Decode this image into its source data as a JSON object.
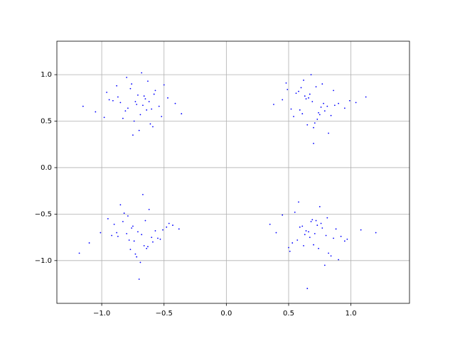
{
  "chart_data": {
    "type": "scatter",
    "color": "#0000ff",
    "grid": true,
    "xlim": [
      -1.36,
      1.47
    ],
    "ylim": [
      -1.46,
      1.36
    ],
    "xticks": [
      {
        "value": -1.0,
        "label": "−1.0"
      },
      {
        "value": -0.5,
        "label": "−0.5"
      },
      {
        "value": 0.0,
        "label": "0.0"
      },
      {
        "value": 0.5,
        "label": "0.5"
      },
      {
        "value": 1.0,
        "label": "1.0"
      }
    ],
    "yticks": [
      {
        "value": -1.0,
        "label": "−1.0"
      },
      {
        "value": -0.5,
        "label": "−0.5"
      },
      {
        "value": 0.0,
        "label": "0.0"
      },
      {
        "value": 0.5,
        "label": "0.5"
      },
      {
        "value": 1.0,
        "label": "1.0"
      }
    ],
    "x": [
      -0.72,
      -0.65,
      -0.81,
      -0.58,
      -0.77,
      -0.69,
      -0.91,
      -0.54,
      -0.63,
      -0.85,
      -0.74,
      -0.6,
      -0.96,
      -0.47,
      -0.7,
      -0.79,
      -0.66,
      -0.88,
      -0.52,
      -0.73,
      -1.05,
      -0.41,
      -0.68,
      -0.83,
      -0.61,
      -0.76,
      -0.57,
      -0.94,
      -0.64,
      -0.71,
      -1.15,
      -0.36,
      -0.8,
      -0.59,
      -0.67,
      -0.87,
      -0.5,
      -0.75,
      -0.62,
      -0.98,
      0.69,
      0.74,
      0.58,
      0.81,
      0.66,
      0.77,
      0.52,
      0.9,
      0.71,
      0.63,
      0.84,
      0.6,
      0.45,
      0.95,
      0.68,
      0.73,
      0.56,
      0.79,
      1.04,
      0.62,
      0.7,
      0.87,
      0.49,
      0.75,
      0.64,
      0.38,
      0.82,
      0.67,
      0.59,
      0.99,
      0.72,
      0.54,
      0.76,
      1.12,
      0.65,
      0.86,
      0.61,
      0.48,
      0.78,
      0.7,
      -0.68,
      -0.76,
      -0.59,
      -0.83,
      -0.71,
      -0.64,
      -0.9,
      -0.55,
      -0.79,
      -0.73,
      -1.01,
      -0.48,
      -0.66,
      -0.87,
      -0.62,
      -0.74,
      -0.51,
      -0.95,
      -0.69,
      -0.8,
      -0.43,
      -0.77,
      -0.6,
      -0.85,
      -1.1,
      -0.57,
      -0.72,
      -0.65,
      -0.92,
      -0.38,
      -0.7,
      -0.82,
      -0.53,
      -0.75,
      -0.63,
      -0.88,
      -0.67,
      -1.18,
      -0.46,
      -0.78,
      0.66,
      0.73,
      0.57,
      0.8,
      0.69,
      0.62,
      0.88,
      0.51,
      0.76,
      0.71,
      0.97,
      0.45,
      0.64,
      0.84,
      0.59,
      0.75,
      0.53,
      0.92,
      0.68,
      0.79,
      0.4,
      0.74,
      0.61,
      0.86,
      1.08,
      0.55,
      0.7,
      0.63,
      0.9,
      0.35,
      0.67,
      0.81,
      0.5,
      0.77,
      0.65,
      0.95,
      0.72,
      1.2,
      0.58,
      0.82
    ],
    "values": [
      0.68,
      0.74,
      0.61,
      0.79,
      0.85,
      0.57,
      0.72,
      0.66,
      0.93,
      0.7,
      0.5,
      0.63,
      0.81,
      0.75,
      0.4,
      0.64,
      0.77,
      0.88,
      0.55,
      0.71,
      0.6,
      0.69,
      1.02,
      0.53,
      0.47,
      0.9,
      0.83,
      0.73,
      0.62,
      0.78,
      0.66,
      0.58,
      0.97,
      0.44,
      0.67,
      0.76,
      0.89,
      0.35,
      0.71,
      0.54,
      0.71,
      0.59,
      0.82,
      0.66,
      0.75,
      0.9,
      0.63,
      0.69,
      0.48,
      0.77,
      0.56,
      0.86,
      0.73,
      0.64,
      1.0,
      0.52,
      0.8,
      0.61,
      0.7,
      0.94,
      0.43,
      0.67,
      0.84,
      0.57,
      0.74,
      0.68,
      0.37,
      0.79,
      0.62,
      0.72,
      0.87,
      0.55,
      0.65,
      0.76,
      0.46,
      0.83,
      0.58,
      0.91,
      0.69,
      0.26,
      -0.72,
      -0.65,
      -0.8,
      -0.58,
      -0.69,
      -0.87,
      -0.61,
      -0.76,
      -0.52,
      -0.93,
      -0.7,
      -0.64,
      -0.84,
      -0.74,
      -0.45,
      -0.79,
      -0.67,
      -0.55,
      -1.02,
      -0.71,
      -0.62,
      -0.88,
      -0.75,
      -0.4,
      -0.81,
      -0.68,
      -0.96,
      -0.57,
      -0.73,
      -0.66,
      -1.2,
      -0.49,
      -0.77,
      -0.63,
      -0.85,
      -0.7,
      -0.29,
      -0.92,
      -0.6,
      -0.78,
      -0.69,
      -0.62,
      -0.78,
      -0.73,
      -0.56,
      -0.84,
      -0.66,
      -0.9,
      -0.6,
      -0.71,
      -0.77,
      -0.51,
      -0.68,
      -0.95,
      -0.64,
      -0.42,
      -0.81,
      -0.74,
      -0.58,
      -1.05,
      -0.7,
      -0.87,
      -0.63,
      -0.76,
      -0.67,
      -0.48,
      -0.83,
      -0.72,
      -0.99,
      -0.61,
      -0.75,
      -0.54,
      -0.86,
      -0.65,
      -1.3,
      -0.79,
      -0.57,
      -0.7,
      -0.37,
      -0.92
    ]
  }
}
